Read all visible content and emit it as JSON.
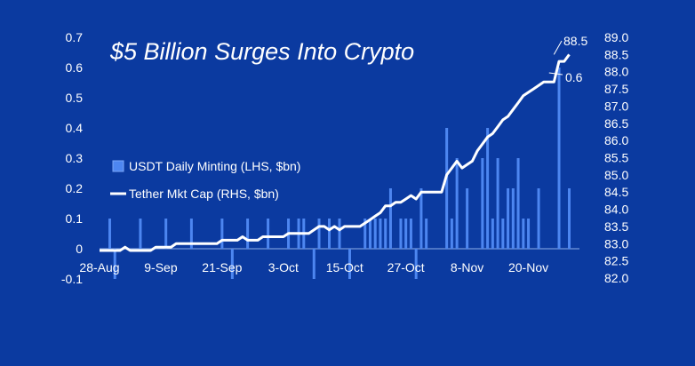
{
  "chart_data": {
    "type": "bar+line",
    "title": "$5 Billion Surges Into Crypto",
    "x_tick_labels": [
      "28-Aug",
      "9-Sep",
      "21-Sep",
      "3-Oct",
      "15-Oct",
      "27-Oct",
      "8-Nov",
      "20-Nov"
    ],
    "x_tick_dates": [
      "2020-08-28",
      "2020-09-09",
      "2020-09-21",
      "2020-10-03",
      "2020-10-15",
      "2020-10-27",
      "2020-11-08",
      "2020-11-20"
    ],
    "y_left": {
      "ticks": [
        "-0.1",
        "0",
        "0.1",
        "0.2",
        "0.3",
        "0.4",
        "0.5",
        "0.6",
        "0.7"
      ],
      "ylim": [
        -0.1,
        0.7
      ]
    },
    "y_right": {
      "ticks": [
        "82.0",
        "82.5",
        "83.0",
        "83.5",
        "84.0",
        "84.5",
        "85.0",
        "85.5",
        "86.0",
        "86.5",
        "87.0",
        "87.5",
        "88.0",
        "88.5",
        "89.0"
      ],
      "ylim": [
        82.0,
        89.0
      ]
    },
    "legend": {
      "placement": "middle-left",
      "entries": [
        "USDT Daily Minting (LHS, $bn)",
        "Tether Mkt Cap (RHS, $bn)"
      ]
    },
    "annotations": [
      {
        "label": "88.5",
        "date": "2020-11-25",
        "value": 88.5,
        "axis": "right"
      },
      {
        "label": "0.6",
        "date": "2020-11-23",
        "value": 0.6,
        "axis": "left"
      }
    ],
    "series": [
      {
        "name": "USDT Daily Minting (LHS, $bn)",
        "type": "bar",
        "axis": "left",
        "color": "#4d86f0",
        "points": [
          [
            "2020-08-30",
            0.1
          ],
          [
            "2020-08-31",
            -0.1
          ],
          [
            "2020-09-05",
            0.1
          ],
          [
            "2020-09-10",
            0.1
          ],
          [
            "2020-09-15",
            0.1
          ],
          [
            "2020-09-21",
            0.1
          ],
          [
            "2020-09-23",
            -0.1
          ],
          [
            "2020-09-26",
            0.1
          ],
          [
            "2020-09-30",
            0.1
          ],
          [
            "2020-10-04",
            0.1
          ],
          [
            "2020-10-06",
            0.1
          ],
          [
            "2020-10-07",
            0.1
          ],
          [
            "2020-10-09",
            -0.1
          ],
          [
            "2020-10-10",
            0.1
          ],
          [
            "2020-10-12",
            0.1
          ],
          [
            "2020-10-14",
            0.1
          ],
          [
            "2020-10-16",
            -0.1
          ],
          [
            "2020-10-19",
            0.1
          ],
          [
            "2020-10-20",
            0.1
          ],
          [
            "2020-10-21",
            0.1
          ],
          [
            "2020-10-22",
            0.1
          ],
          [
            "2020-10-23",
            0.1
          ],
          [
            "2020-10-24",
            0.2
          ],
          [
            "2020-10-26",
            0.1
          ],
          [
            "2020-10-27",
            0.1
          ],
          [
            "2020-10-28",
            0.1
          ],
          [
            "2020-10-29",
            -0.1
          ],
          [
            "2020-10-30",
            0.2
          ],
          [
            "2020-10-31",
            0.1
          ],
          [
            "2020-11-04",
            0.4
          ],
          [
            "2020-11-05",
            0.1
          ],
          [
            "2020-11-06",
            0.3
          ],
          [
            "2020-11-08",
            0.2
          ],
          [
            "2020-11-11",
            0.3
          ],
          [
            "2020-11-12",
            0.4
          ],
          [
            "2020-11-13",
            0.1
          ],
          [
            "2020-11-14",
            0.3
          ],
          [
            "2020-11-15",
            0.1
          ],
          [
            "2020-11-16",
            0.2
          ],
          [
            "2020-11-17",
            0.2
          ],
          [
            "2020-11-18",
            0.3
          ],
          [
            "2020-11-19",
            0.1
          ],
          [
            "2020-11-20",
            0.1
          ],
          [
            "2020-11-22",
            0.2
          ],
          [
            "2020-11-26",
            0.6
          ],
          [
            "2020-11-28",
            0.2
          ]
        ]
      },
      {
        "name": "Tether Mkt Cap (RHS, $bn)",
        "type": "line",
        "axis": "right",
        "color": "#ffffff",
        "points": [
          [
            "2020-08-28",
            82.8
          ],
          [
            "2020-09-01",
            82.8
          ],
          [
            "2020-09-02",
            82.9
          ],
          [
            "2020-09-03",
            82.8
          ],
          [
            "2020-09-07",
            82.8
          ],
          [
            "2020-09-08",
            82.9
          ],
          [
            "2020-09-11",
            82.9
          ],
          [
            "2020-09-12",
            83.0
          ],
          [
            "2020-09-20",
            83.0
          ],
          [
            "2020-09-21",
            83.1
          ],
          [
            "2020-09-24",
            83.1
          ],
          [
            "2020-09-25",
            83.2
          ],
          [
            "2020-09-26",
            83.1
          ],
          [
            "2020-09-28",
            83.1
          ],
          [
            "2020-09-29",
            83.2
          ],
          [
            "2020-10-03",
            83.2
          ],
          [
            "2020-10-04",
            83.3
          ],
          [
            "2020-10-08",
            83.3
          ],
          [
            "2020-10-09",
            83.4
          ],
          [
            "2020-10-10",
            83.5
          ],
          [
            "2020-10-11",
            83.5
          ],
          [
            "2020-10-12",
            83.4
          ],
          [
            "2020-10-13",
            83.5
          ],
          [
            "2020-10-14",
            83.4
          ],
          [
            "2020-10-15",
            83.5
          ],
          [
            "2020-10-18",
            83.5
          ],
          [
            "2020-10-19",
            83.6
          ],
          [
            "2020-10-20",
            83.7
          ],
          [
            "2020-10-21",
            83.8
          ],
          [
            "2020-10-22",
            83.9
          ],
          [
            "2020-10-23",
            84.1
          ],
          [
            "2020-10-24",
            84.1
          ],
          [
            "2020-10-25",
            84.2
          ],
          [
            "2020-10-26",
            84.2
          ],
          [
            "2020-10-27",
            84.3
          ],
          [
            "2020-10-28",
            84.4
          ],
          [
            "2020-10-29",
            84.3
          ],
          [
            "2020-10-30",
            84.5
          ],
          [
            "2020-11-03",
            84.5
          ],
          [
            "2020-11-04",
            85.0
          ],
          [
            "2020-11-05",
            85.2
          ],
          [
            "2020-11-06",
            85.4
          ],
          [
            "2020-11-07",
            85.2
          ],
          [
            "2020-11-08",
            85.3
          ],
          [
            "2020-11-09",
            85.4
          ],
          [
            "2020-11-10",
            85.7
          ],
          [
            "2020-11-11",
            85.9
          ],
          [
            "2020-11-12",
            86.1
          ],
          [
            "2020-11-13",
            86.2
          ],
          [
            "2020-11-14",
            86.4
          ],
          [
            "2020-11-15",
            86.6
          ],
          [
            "2020-11-16",
            86.7
          ],
          [
            "2020-11-17",
            86.9
          ],
          [
            "2020-11-18",
            87.1
          ],
          [
            "2020-11-19",
            87.3
          ],
          [
            "2020-11-20",
            87.4
          ],
          [
            "2020-11-21",
            87.5
          ],
          [
            "2020-11-22",
            87.6
          ],
          [
            "2020-11-23",
            87.7
          ],
          [
            "2020-11-24",
            87.7
          ],
          [
            "2020-11-25",
            87.7
          ],
          [
            "2020-11-26",
            88.3
          ],
          [
            "2020-11-27",
            88.3
          ],
          [
            "2020-11-28",
            88.5
          ]
        ]
      }
    ]
  }
}
